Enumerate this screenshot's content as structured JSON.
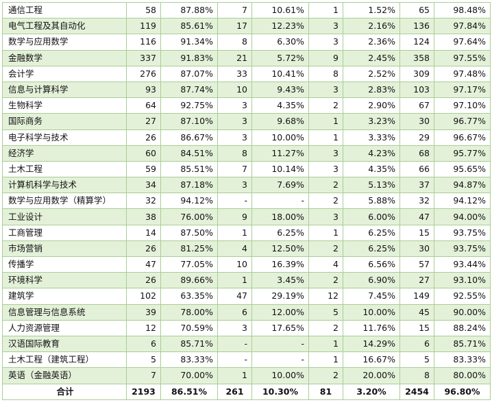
{
  "rows": [
    [
      "通信工程",
      "58",
      "87.88%",
      "7",
      "10.61%",
      "1",
      "1.52%",
      "65",
      "98.48%"
    ],
    [
      "电气工程及其自动化",
      "119",
      "85.61%",
      "17",
      "12.23%",
      "3",
      "2.16%",
      "136",
      "97.84%"
    ],
    [
      "数学与应用数学",
      "116",
      "91.34%",
      "8",
      "6.30%",
      "3",
      "2.36%",
      "124",
      "97.64%"
    ],
    [
      "金融数学",
      "337",
      "91.83%",
      "21",
      "5.72%",
      "9",
      "2.45%",
      "358",
      "97.55%"
    ],
    [
      "会计学",
      "276",
      "87.07%",
      "33",
      "10.41%",
      "8",
      "2.52%",
      "309",
      "97.48%"
    ],
    [
      "信息与计算科学",
      "93",
      "87.74%",
      "10",
      "9.43%",
      "3",
      "2.83%",
      "103",
      "97.17%"
    ],
    [
      "生物科学",
      "64",
      "92.75%",
      "3",
      "4.35%",
      "2",
      "2.90%",
      "67",
      "97.10%"
    ],
    [
      "国际商务",
      "27",
      "87.10%",
      "3",
      "9.68%",
      "1",
      "3.23%",
      "30",
      "96.77%"
    ],
    [
      "电子科学与技术",
      "26",
      "86.67%",
      "3",
      "10.00%",
      "1",
      "3.33%",
      "29",
      "96.67%"
    ],
    [
      "经济学",
      "60",
      "84.51%",
      "8",
      "11.27%",
      "3",
      "4.23%",
      "68",
      "95.77%"
    ],
    [
      "土木工程",
      "59",
      "85.51%",
      "7",
      "10.14%",
      "3",
      "4.35%",
      "66",
      "95.65%"
    ],
    [
      "计算机科学与技术",
      "34",
      "87.18%",
      "3",
      "7.69%",
      "2",
      "5.13%",
      "37",
      "94.87%"
    ],
    [
      "数学与应用数学（精算学）",
      "32",
      "94.12%",
      "-",
      "-",
      "2",
      "5.88%",
      "32",
      "94.12%"
    ],
    [
      "工业设计",
      "38",
      "76.00%",
      "9",
      "18.00%",
      "3",
      "6.00%",
      "47",
      "94.00%"
    ],
    [
      "工商管理",
      "14",
      "87.50%",
      "1",
      "6.25%",
      "1",
      "6.25%",
      "15",
      "93.75%"
    ],
    [
      "市场营销",
      "26",
      "81.25%",
      "4",
      "12.50%",
      "2",
      "6.25%",
      "30",
      "93.75%"
    ],
    [
      "传播学",
      "47",
      "77.05%",
      "10",
      "16.39%",
      "4",
      "6.56%",
      "57",
      "93.44%"
    ],
    [
      "环境科学",
      "26",
      "89.66%",
      "1",
      "3.45%",
      "2",
      "6.90%",
      "27",
      "93.10%"
    ],
    [
      "建筑学",
      "102",
      "63.35%",
      "47",
      "29.19%",
      "12",
      "7.45%",
      "149",
      "92.55%"
    ],
    [
      "信息管理与信息系统",
      "39",
      "78.00%",
      "6",
      "12.00%",
      "5",
      "10.00%",
      "45",
      "90.00%"
    ],
    [
      "人力资源管理",
      "12",
      "70.59%",
      "3",
      "17.65%",
      "2",
      "11.76%",
      "15",
      "88.24%"
    ],
    [
      "汉语国际教育",
      "6",
      "85.71%",
      "-",
      "-",
      "1",
      "14.29%",
      "6",
      "85.71%"
    ],
    [
      "土木工程（建筑工程）",
      "5",
      "83.33%",
      "-",
      "-",
      "1",
      "16.67%",
      "5",
      "83.33%"
    ],
    [
      "英语（金融英语）",
      "7",
      "70.00%",
      "1",
      "10.00%",
      "2",
      "20.00%",
      "8",
      "80.00%"
    ]
  ],
  "total": [
    "合计",
    "2193",
    "86.51%",
    "261",
    "10.30%",
    "81",
    "3.20%",
    "2454",
    "96.80%"
  ]
}
